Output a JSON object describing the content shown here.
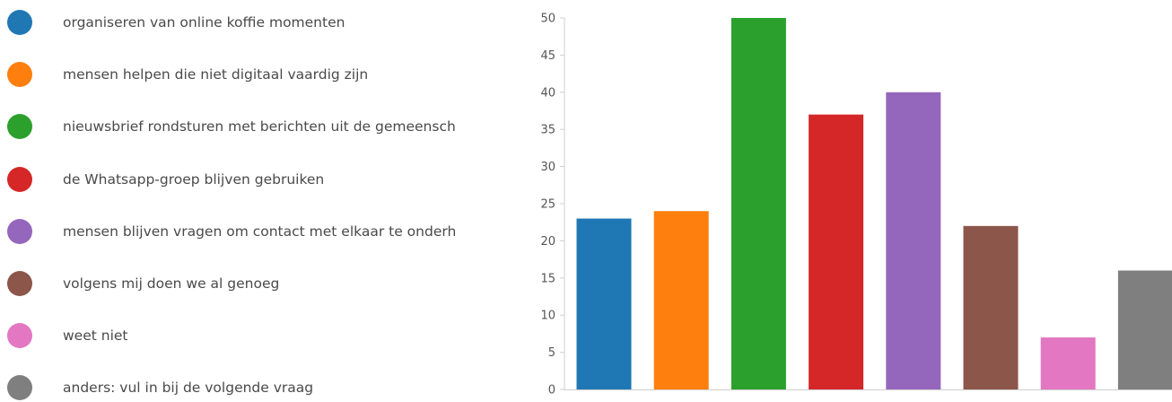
{
  "chart_data": {
    "type": "bar",
    "categories": [
      "organiseren van online koffie momenten",
      "mensen helpen die niet digitaal vaardig zijn",
      "nieuwsbrief rondsturen met berichten uit de gemeensch",
      "de Whatsapp-groep blijven gebruiken",
      "mensen blijven vragen om contact met elkaar te onderh",
      "volgens mij doen we al genoeg",
      "weet niet",
      "anders: vul in bij de volgende vraag"
    ],
    "values": [
      23,
      24,
      50,
      37,
      40,
      22,
      7,
      16
    ],
    "colors": [
      "#1f77b4",
      "#ff7f0e",
      "#2ca02c",
      "#d62728",
      "#9467bd",
      "#8c564b",
      "#e377c2",
      "#7f7f7f"
    ],
    "ylim": [
      0,
      50
    ],
    "yticks": [
      "0",
      "5",
      "10",
      "15",
      "20",
      "25",
      "30",
      "35",
      "40",
      "45",
      "50"
    ],
    "legend": "left",
    "grid": false
  }
}
